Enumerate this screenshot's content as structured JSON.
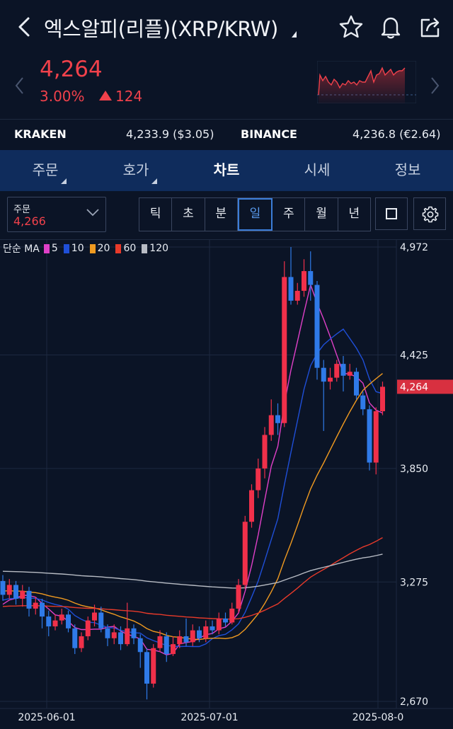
{
  "header": {
    "title": "엑스알피(리플)(XRP/KRW)",
    "back_icon": "chevron-left-icon",
    "icons": [
      "star-icon",
      "bell-icon",
      "share-icon"
    ]
  },
  "ticker": {
    "price": "4,264",
    "change_pct": "3.00%",
    "change_abs": "124",
    "direction": "up",
    "color": "#f0414b"
  },
  "exchanges": [
    {
      "name": "KRAKEN",
      "value": "4,233.9 ($3.05)"
    },
    {
      "name": "BINANCE",
      "value": "4,236.8 (€2.64)"
    }
  ],
  "tabs": [
    {
      "label": "주문",
      "has_caret": true
    },
    {
      "label": "호가",
      "has_caret": true
    },
    {
      "label": "차트",
      "active": true
    },
    {
      "label": "시세"
    },
    {
      "label": "정보"
    }
  ],
  "order_select": {
    "label": "주문",
    "value": "4,266"
  },
  "periods": [
    "틱",
    "초",
    "분",
    "일",
    "주",
    "월",
    "년"
  ],
  "active_period": "일",
  "legend": {
    "label": "단순 MA",
    "items": [
      {
        "value": "5",
        "color": "#e040c8"
      },
      {
        "value": "10",
        "color": "#1f4fd8"
      },
      {
        "value": "20",
        "color": "#f09a20"
      },
      {
        "value": "60",
        "color": "#e83a2a"
      },
      {
        "value": "120",
        "color": "#b8bcc4"
      }
    ]
  },
  "chart_data": {
    "type": "candlestick",
    "y_ticks": [
      "4,972",
      "4,425",
      "3,850",
      "3,275",
      "2,670"
    ],
    "x_ticks": [
      "2025-06-01",
      "2025-07-01",
      "2025-08-0"
    ],
    "last_price_label": "4,264",
    "last_price": 4264,
    "ylim": [
      2670,
      4972
    ],
    "candles": [
      {
        "o": 3280,
        "c": 3210,
        "h": 3310,
        "l": 3180
      },
      {
        "o": 3210,
        "c": 3260,
        "h": 3290,
        "l": 3190
      },
      {
        "o": 3260,
        "c": 3190,
        "h": 3280,
        "l": 3160
      },
      {
        "o": 3190,
        "c": 3230,
        "h": 3260,
        "l": 3150
      },
      {
        "o": 3230,
        "c": 3140,
        "h": 3250,
        "l": 3100
      },
      {
        "o": 3140,
        "c": 3170,
        "h": 3200,
        "l": 3110
      },
      {
        "o": 3170,
        "c": 3100,
        "h": 3190,
        "l": 3040
      },
      {
        "o": 3100,
        "c": 3050,
        "h": 3130,
        "l": 3000
      },
      {
        "o": 3050,
        "c": 3080,
        "h": 3110,
        "l": 3030
      },
      {
        "o": 3080,
        "c": 3110,
        "h": 3140,
        "l": 3060
      },
      {
        "o": 3110,
        "c": 3040,
        "h": 3130,
        "l": 3020
      },
      {
        "o": 3040,
        "c": 2940,
        "h": 3060,
        "l": 2910
      },
      {
        "o": 2940,
        "c": 3000,
        "h": 3020,
        "l": 2920
      },
      {
        "o": 3000,
        "c": 3080,
        "h": 3100,
        "l": 2980
      },
      {
        "o": 3080,
        "c": 3120,
        "h": 3160,
        "l": 3050
      },
      {
        "o": 3120,
        "c": 3040,
        "h": 3150,
        "l": 3020
      },
      {
        "o": 3040,
        "c": 2990,
        "h": 3060,
        "l": 2950
      },
      {
        "o": 2990,
        "c": 3020,
        "h": 3060,
        "l": 2960
      },
      {
        "o": 3020,
        "c": 2960,
        "h": 3050,
        "l": 2930
      },
      {
        "o": 2960,
        "c": 3040,
        "h": 3170,
        "l": 2950
      },
      {
        "o": 3040,
        "c": 2990,
        "h": 3060,
        "l": 2960
      },
      {
        "o": 2990,
        "c": 2920,
        "h": 3010,
        "l": 2840
      },
      {
        "o": 2920,
        "c": 2760,
        "h": 2940,
        "l": 2680
      },
      {
        "o": 2760,
        "c": 2940,
        "h": 2960,
        "l": 2740
      },
      {
        "o": 2940,
        "c": 3000,
        "h": 3030,
        "l": 2920
      },
      {
        "o": 3000,
        "c": 2910,
        "h": 3020,
        "l": 2870
      },
      {
        "o": 2910,
        "c": 2960,
        "h": 3000,
        "l": 2900
      },
      {
        "o": 2960,
        "c": 3000,
        "h": 3030,
        "l": 2940
      },
      {
        "o": 3000,
        "c": 2970,
        "h": 3090,
        "l": 2950
      },
      {
        "o": 2970,
        "c": 3030,
        "h": 3060,
        "l": 2950
      },
      {
        "o": 3030,
        "c": 2990,
        "h": 3050,
        "l": 2970
      },
      {
        "o": 2990,
        "c": 3050,
        "h": 3080,
        "l": 2970
      },
      {
        "o": 3050,
        "c": 3030,
        "h": 3080,
        "l": 3010
      },
      {
        "o": 3030,
        "c": 3090,
        "h": 3120,
        "l": 3010
      },
      {
        "o": 3090,
        "c": 3070,
        "h": 3120,
        "l": 3050
      },
      {
        "o": 3070,
        "c": 3140,
        "h": 3170,
        "l": 3060
      },
      {
        "o": 3140,
        "c": 3260,
        "h": 3290,
        "l": 3120
      },
      {
        "o": 3260,
        "c": 3580,
        "h": 3610,
        "l": 3240
      },
      {
        "o": 3580,
        "c": 3740,
        "h": 3770,
        "l": 3550
      },
      {
        "o": 3740,
        "c": 3850,
        "h": 3900,
        "l": 3700
      },
      {
        "o": 3850,
        "c": 4020,
        "h": 4060,
        "l": 3800
      },
      {
        "o": 4020,
        "c": 4120,
        "h": 4200,
        "l": 3990
      },
      {
        "o": 4120,
        "c": 4080,
        "h": 4180,
        "l": 4020
      },
      {
        "o": 4080,
        "c": 4820,
        "h": 4900,
        "l": 4060
      },
      {
        "o": 4820,
        "c": 4700,
        "h": 4972,
        "l": 4680
      },
      {
        "o": 4700,
        "c": 4750,
        "h": 4790,
        "l": 4680
      },
      {
        "o": 4750,
        "c": 4850,
        "h": 4910,
        "l": 4720
      },
      {
        "o": 4850,
        "c": 4780,
        "h": 4950,
        "l": 4700
      },
      {
        "o": 4780,
        "c": 4360,
        "h": 4800,
        "l": 4300
      },
      {
        "o": 4360,
        "c": 4290,
        "h": 4400,
        "l": 4040
      },
      {
        "o": 4290,
        "c": 4310,
        "h": 4360,
        "l": 4250
      },
      {
        "o": 4310,
        "c": 4380,
        "h": 4400,
        "l": 4290
      },
      {
        "o": 4380,
        "c": 4320,
        "h": 4420,
        "l": 4240
      },
      {
        "o": 4320,
        "c": 4340,
        "h": 4380,
        "l": 4300
      },
      {
        "o": 4340,
        "c": 4220,
        "h": 4360,
        "l": 4200
      },
      {
        "o": 4220,
        "c": 4150,
        "h": 4240,
        "l": 4120
      },
      {
        "o": 4150,
        "c": 3880,
        "h": 4170,
        "l": 3840
      },
      {
        "o": 3880,
        "c": 4140,
        "h": 4160,
        "l": 3820
      },
      {
        "o": 4140,
        "c": 4264,
        "h": 4290,
        "l": 4120
      }
    ]
  }
}
